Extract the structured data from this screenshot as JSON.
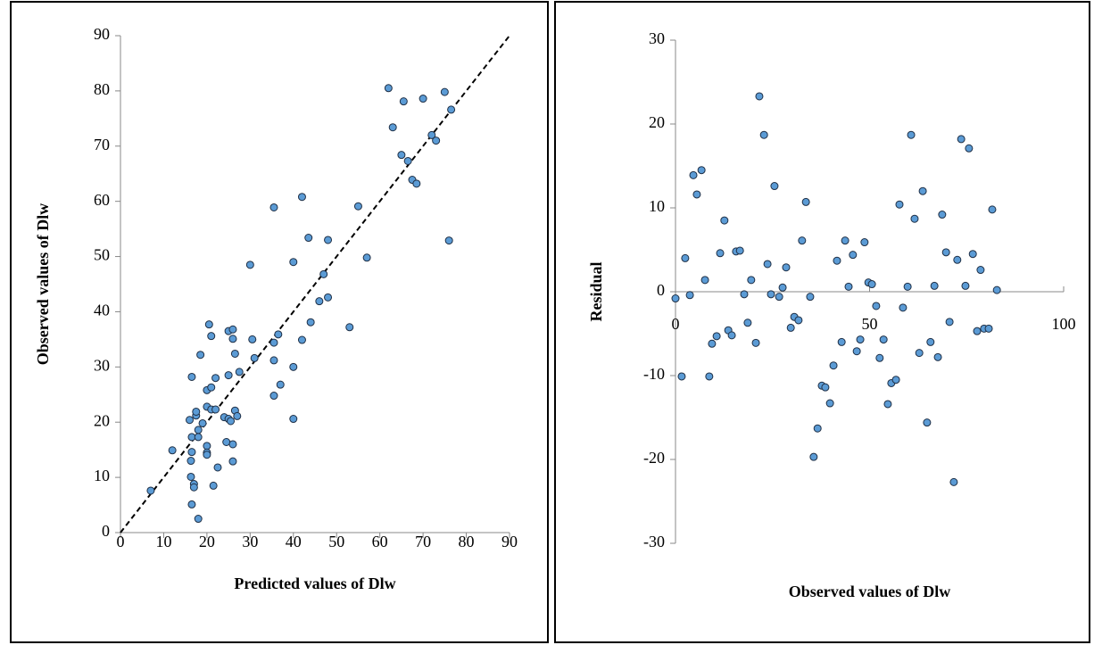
{
  "chart_data": [
    {
      "type": "scatter",
      "x_label": "Predicted values of Dlw",
      "y_label": "Observed values of Dlw",
      "color": "#5b9bd5",
      "identity_line": true,
      "xlim": [
        0,
        90
      ],
      "ylim": [
        0,
        90
      ],
      "xticks": [
        0,
        10,
        20,
        30,
        40,
        50,
        60,
        70,
        80,
        90
      ],
      "yticks": [
        0,
        10,
        20,
        30,
        40,
        50,
        60,
        70,
        80,
        90
      ],
      "x": [
        7,
        12,
        16,
        16.5,
        16.5,
        16.5,
        16.3,
        16.3,
        16.5,
        17,
        17,
        17.5,
        17.5,
        18,
        18,
        18,
        18.5,
        19,
        20,
        20,
        20,
        20,
        20,
        20.5,
        21,
        21,
        21,
        21.5,
        22,
        22,
        22.5,
        24,
        24.5,
        25,
        25,
        25,
        25.5,
        26,
        26,
        26,
        26,
        26.5,
        26.5,
        27,
        27.5,
        30,
        30.5,
        31,
        35.5,
        35.5,
        35.5,
        35.5,
        36.5,
        37,
        40,
        40,
        40,
        42,
        42,
        43.5,
        44,
        46,
        47,
        48,
        48,
        53,
        55,
        57,
        62,
        63,
        65,
        65.5,
        66.5,
        67.5,
        68.5,
        70,
        72,
        73,
        75,
        76,
        76.5
      ],
      "values": [
        7.6,
        14.9,
        20.4,
        28.2,
        17.3,
        14.6,
        13.0,
        10.1,
        5.1,
        8.8,
        8.2,
        21.2,
        21.9,
        17.3,
        18.6,
        2.5,
        32.2,
        19.8,
        25.8,
        22.8,
        15.7,
        14.5,
        14.1,
        37.7,
        35.6,
        26.3,
        22.3,
        8.5,
        28.0,
        22.3,
        11.8,
        20.9,
        16.4,
        36.5,
        28.5,
        20.6,
        20.2,
        36.8,
        35.1,
        16.0,
        12.9,
        32.4,
        22.1,
        21.1,
        29.1,
        48.5,
        35.0,
        31.6,
        34.4,
        31.2,
        24.8,
        58.9,
        35.9,
        26.8,
        49.0,
        30.0,
        20.6,
        60.8,
        34.9,
        53.4,
        38.1,
        41.9,
        46.8,
        53.0,
        42.6,
        37.2,
        59.1,
        49.8,
        80.5,
        73.4,
        68.4,
        78.1,
        67.3,
        63.9,
        63.2,
        78.6,
        72.0,
        71.0,
        79.8,
        52.9,
        76.6
      ]
    },
    {
      "type": "scatter",
      "x_label": "Observed values of Dlw",
      "y_label": "Residual",
      "color": "#5b9bd5",
      "x_axis_at_zero": true,
      "xlim": [
        0,
        100
      ],
      "ylim": [
        -30,
        30
      ],
      "xticks": [
        0,
        50,
        100
      ],
      "yticks": [
        -30,
        -20,
        -10,
        0,
        10,
        20,
        30
      ],
      "x": [
        0,
        1.6,
        2.5,
        3.7,
        4.6,
        5.5,
        6.7,
        7.6,
        8.7,
        9.4,
        10.6,
        11.5,
        12.6,
        13.6,
        14.5,
        15.6,
        16.6,
        17.7,
        18.6,
        19.5,
        20.7,
        21.6,
        22.8,
        23.7,
        24.6,
        25.5,
        26.7,
        27.6,
        28.5,
        29.7,
        30.6,
        31.7,
        32.6,
        33.6,
        34.7,
        35.6,
        36.6,
        37.7,
        38.6,
        39.8,
        40.7,
        41.6,
        42.8,
        43.7,
        44.6,
        45.7,
        46.7,
        47.6,
        48.7,
        49.7,
        50.6,
        51.7,
        52.6,
        53.6,
        54.7,
        55.6,
        56.8,
        57.7,
        58.6,
        59.8,
        60.7,
        61.6,
        62.8,
        63.7,
        64.8,
        65.7,
        66.7,
        67.6,
        68.7,
        69.7,
        70.6,
        71.7,
        72.6,
        73.6,
        74.7,
        75.6,
        76.6,
        77.7,
        78.6,
        79.5,
        80.7,
        81.6,
        82.8
      ],
      "values": [
        -0.8,
        -10.1,
        4.0,
        -0.4,
        13.9,
        11.6,
        14.5,
        1.4,
        -10.1,
        -6.2,
        -5.3,
        4.6,
        8.5,
        -4.6,
        -5.2,
        4.8,
        4.9,
        -0.3,
        -3.7,
        1.4,
        -6.1,
        23.3,
        18.7,
        3.3,
        -0.3,
        12.6,
        -0.6,
        0.5,
        2.9,
        -4.3,
        -3.0,
        -3.4,
        6.1,
        10.7,
        -0.6,
        -19.7,
        -16.3,
        -11.2,
        -11.4,
        -13.3,
        -8.8,
        3.7,
        -6.0,
        6.1,
        0.6,
        4.4,
        -7.1,
        -5.7,
        5.9,
        1.1,
        0.9,
        -1.7,
        -7.9,
        -5.7,
        -13.4,
        -10.9,
        -10.5,
        10.4,
        -1.9,
        0.6,
        18.7,
        8.7,
        -7.3,
        12.0,
        -15.6,
        -6.0,
        0.7,
        -7.8,
        9.2,
        4.7,
        -3.6,
        -22.7,
        3.8,
        18.2,
        0.7,
        17.1,
        4.5,
        -4.7,
        2.6,
        -4.4,
        -4.4,
        9.8,
        0.2
      ]
    }
  ]
}
